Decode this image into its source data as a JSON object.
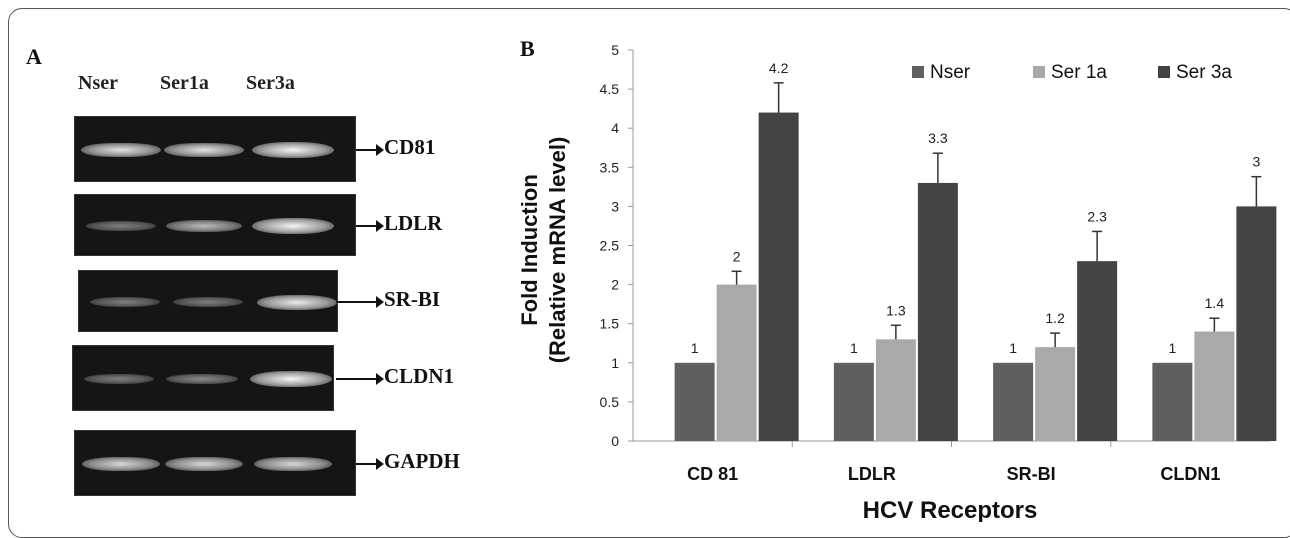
{
  "panels": {
    "a_label": "A",
    "b_label": "B"
  },
  "gel": {
    "lanes": [
      "Nser",
      "Ser1a",
      "Ser3a"
    ],
    "genes": [
      {
        "name": "CD81",
        "intensity": [
          0.85,
          0.85,
          0.95
        ]
      },
      {
        "name": "LDLR",
        "intensity": [
          0.35,
          0.65,
          0.95
        ]
      },
      {
        "name": "SR-BI",
        "intensity": [
          0.35,
          0.35,
          0.9
        ]
      },
      {
        "name": "CLDN1",
        "intensity": [
          0.35,
          0.4,
          0.95
        ]
      },
      {
        "name": "GAPDH",
        "intensity": [
          0.8,
          0.8,
          0.8
        ]
      }
    ]
  },
  "chart_data": {
    "type": "bar",
    "categories": [
      "CD 81",
      "LDLR",
      "SR-BI",
      "CLDN1"
    ],
    "series": [
      {
        "name": "Nser",
        "values": [
          1,
          1,
          1,
          1
        ],
        "errors": [
          0,
          0,
          0,
          0
        ],
        "color": "#5f5f5f"
      },
      {
        "name": "Ser 1a",
        "values": [
          2,
          1.3,
          1.2,
          1.4
        ],
        "errors": [
          0.17,
          0.18,
          0.18,
          0.17
        ],
        "color": "#a9a9a9"
      },
      {
        "name": "Ser 3a",
        "values": [
          4.2,
          3.3,
          2.3,
          3
        ],
        "errors": [
          0.38,
          0.38,
          0.38,
          0.38
        ],
        "color": "#444444"
      }
    ],
    "data_labels": [
      [
        "1",
        "1",
        "1",
        "1"
      ],
      [
        "2",
        "1.3",
        "1.2",
        "1.4"
      ],
      [
        "4.2",
        "3.3",
        "2.3",
        "3"
      ]
    ],
    "ylabel_line1": "Fold Induction",
    "ylabel_line2": "(Relative mRNA level)",
    "xlabel": "HCV Receptors",
    "yticks": [
      "0",
      "0.5",
      "1",
      "1.5",
      "2",
      "2.5",
      "3",
      "3.5",
      "4",
      "4.5",
      "5"
    ],
    "ylim": [
      0,
      5
    ],
    "grid": false,
    "legend_position": "top-right"
  }
}
